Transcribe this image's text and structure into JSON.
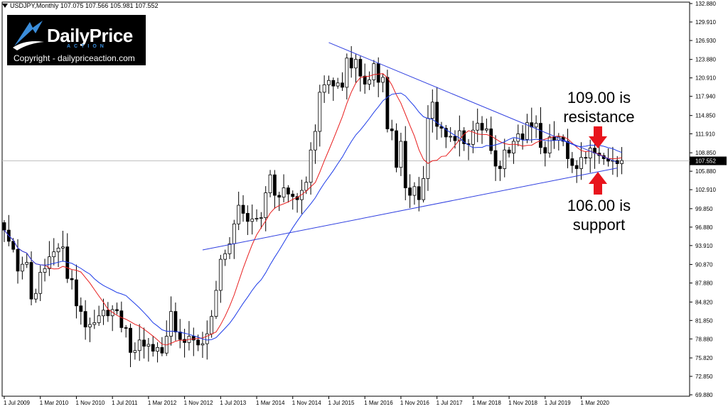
{
  "header": {
    "symbol_info": "USDJPY,Monthly  107.075 107.566 105.981 107.552"
  },
  "logo": {
    "brand": "DailyPrice",
    "sub": "ACTION",
    "copyright": "Copyright - dailypriceaction.com",
    "colors": {
      "background": "#000000",
      "text": "#ffffff",
      "accent": "#3a8ddb"
    }
  },
  "annotations": {
    "resistance": [
      "109.00 is",
      "resistance"
    ],
    "support": [
      "106.00 is",
      "support"
    ],
    "arrow_color": "#e8141c"
  },
  "chart_data": {
    "type": "candlestick",
    "symbol": "USDJPY",
    "timeframe": "Monthly",
    "ohlc_last": {
      "open": 107.075,
      "high": 107.566,
      "low": 105.981,
      "close": 107.552
    },
    "current_price": 107.552,
    "y_range": [
      69.88,
      133.61
    ],
    "y_ticks": [
      "132.880",
      "129.910",
      "126.930",
      "123.880",
      "120.910",
      "117.940",
      "114.850",
      "111.910",
      "108.850",
      "105.880",
      "102.910",
      "99.850",
      "96.880",
      "93.910",
      "90.870",
      "87.880",
      "84.820",
      "81.850",
      "78.880",
      "75.820",
      "72.850",
      "69.880"
    ],
    "x_ticks": [
      "1 Jul 2009",
      "1 Mar 2010",
      "1 Nov 2010",
      "1 Jul 2011",
      "1 Mar 2012",
      "1 Nov 2012",
      "1 Jul 2013",
      "1 Mar 2014",
      "1 Nov 2014",
      "1 Jul 2015",
      "1 Mar 2016",
      "1 Nov 2016",
      "1 Jul 2017",
      "1 Mar 2018",
      "1 Nov 2018",
      "1 Jul 2019",
      "1 Mar 2020"
    ],
    "closes": [
      96.4,
      94.6,
      93.3,
      89.8,
      90.9,
      91.2,
      85.3,
      86.2,
      89.6,
      90.2,
      92.1,
      92.9,
      93.5,
      93.7,
      88.6,
      88.4,
      84.2,
      83.3,
      80.8,
      81.2,
      81.5,
      82.6,
      83.5,
      82.6,
      83.6,
      83.4,
      80.7,
      80.6,
      76.7,
      77.0,
      78.7,
      77.7,
      78.0,
      76.9,
      77.5,
      76.6,
      79.3,
      83.3,
      80.0,
      78.8,
      78.3,
      79.3,
      78.7,
      77.9,
      78.1,
      79.7,
      82.5,
      86.7,
      91.7,
      92.6,
      94.2,
      97.4,
      100.4,
      99.1,
      97.8,
      98.2,
      98.3,
      98.4,
      102.4,
      105.3,
      102.0,
      101.7,
      103.2,
      102.2,
      101.8,
      101.3,
      102.8,
      104.1,
      109.3,
      112.3,
      118.6,
      119.8,
      120.5,
      119.6,
      120.1,
      119.4,
      124.1,
      122.5,
      123.9,
      121.2,
      119.9,
      120.6,
      123.2,
      120.2,
      121.0,
      112.7,
      112.4,
      106.5,
      110.7,
      103.2,
      102.0,
      103.4,
      101.3,
      104.7,
      114.4,
      117.0,
      113.1,
      112.8,
      111.4,
      111.5,
      110.8,
      112.4,
      110.3,
      110.2,
      112.5,
      113.6,
      112.5,
      112.7,
      109.2,
      106.7,
      106.3,
      109.3,
      108.8,
      110.7,
      111.9,
      111.0,
      113.7,
      113.0,
      113.6,
      109.7,
      108.8,
      111.4,
      110.9,
      111.4,
      110.7,
      107.9,
      106.8,
      106.3,
      108.1,
      108.0,
      109.6,
      108.8,
      108.4,
      107.9,
      107.5,
      107.6,
      107.1,
      107.6
    ]
  }
}
